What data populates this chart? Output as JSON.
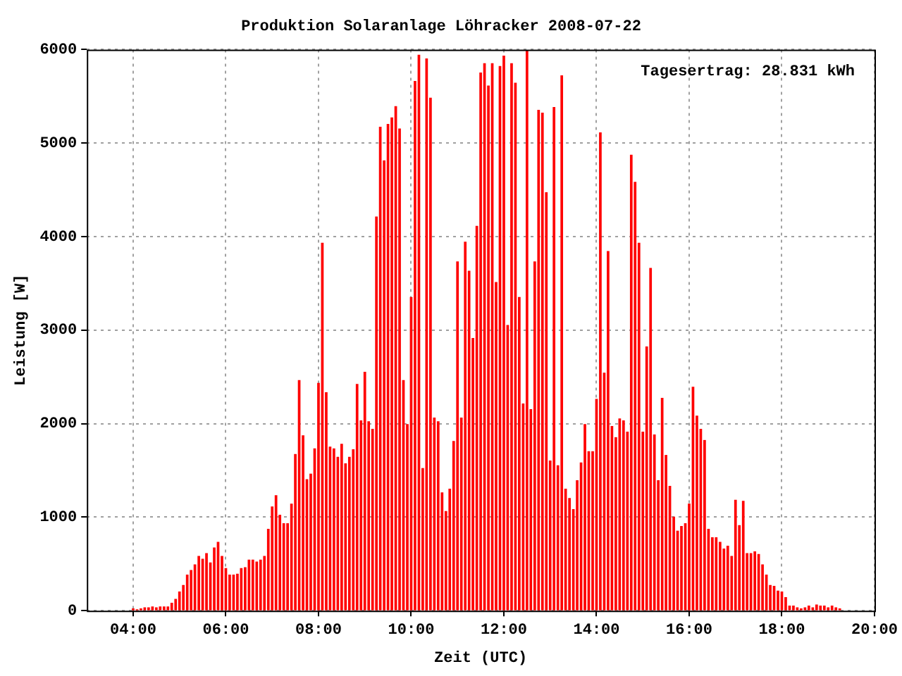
{
  "chart_data": {
    "type": "bar",
    "title": "Produktion Solaranlage Löhracker 2008-07-22",
    "xlabel": "Zeit (UTC)",
    "ylabel": "Leistung [W]",
    "annotations": [
      "Tagesertrag: 28.831 kWh"
    ],
    "x": [
      4,
      4.083,
      4.167,
      4.25,
      4.333,
      4.417,
      4.5,
      4.583,
      4.667,
      4.75,
      4.833,
      4.917,
      5,
      5.083,
      5.167,
      5.25,
      5.333,
      5.417,
      5.5,
      5.583,
      5.667,
      5.75,
      5.833,
      5.917,
      6,
      6.083,
      6.167,
      6.25,
      6.333,
      6.417,
      6.5,
      6.583,
      6.667,
      6.75,
      6.833,
      6.917,
      7,
      7.083,
      7.167,
      7.25,
      7.333,
      7.417,
      7.5,
      7.583,
      7.667,
      7.75,
      7.833,
      7.917,
      8,
      8.083,
      8.167,
      8.25,
      8.333,
      8.417,
      8.5,
      8.583,
      8.667,
      8.75,
      8.833,
      8.917,
      9,
      9.083,
      9.167,
      9.25,
      9.333,
      9.417,
      9.5,
      9.583,
      9.667,
      9.75,
      9.833,
      9.917,
      10,
      10.083,
      10.167,
      10.25,
      10.333,
      10.417,
      10.5,
      10.583,
      10.667,
      10.75,
      10.833,
      10.917,
      11,
      11.083,
      11.167,
      11.25,
      11.333,
      11.417,
      11.5,
      11.583,
      11.667,
      11.75,
      11.833,
      11.917,
      12,
      12.083,
      12.167,
      12.25,
      12.333,
      12.417,
      12.5,
      12.583,
      12.667,
      12.75,
      12.833,
      12.917,
      13,
      13.083,
      13.167,
      13.25,
      13.333,
      13.417,
      13.5,
      13.583,
      13.667,
      13.75,
      13.833,
      13.917,
      14,
      14.083,
      14.167,
      14.25,
      14.333,
      14.417,
      14.5,
      14.583,
      14.667,
      14.75,
      14.833,
      14.917,
      15,
      15.083,
      15.167,
      15.25,
      15.333,
      15.417,
      15.5,
      15.583,
      15.667,
      15.75,
      15.833,
      15.917,
      16,
      16.083,
      16.167,
      16.25,
      16.333,
      16.417,
      16.5,
      16.583,
      16.667,
      16.75,
      16.833,
      16.917,
      17,
      17.083,
      17.167,
      17.25,
      17.333,
      17.417,
      17.5,
      17.583,
      17.667,
      17.75,
      17.833,
      17.917,
      18,
      18.083,
      18.167,
      18.25,
      18.333,
      18.417,
      18.5,
      18.583,
      18.667,
      18.75,
      18.833,
      18.917,
      19,
      19.083,
      19.167,
      19.25
    ],
    "series": [
      {
        "color": "#ff0000",
        "values": [
          20,
          10,
          20,
          30,
          30,
          40,
          30,
          40,
          40,
          40,
          80,
          120,
          200,
          270,
          380,
          430,
          490,
          580,
          550,
          610,
          510,
          670,
          730,
          580,
          450,
          380,
          380,
          390,
          450,
          460,
          540,
          540,
          520,
          540,
          580,
          870,
          1110,
          1230,
          1020,
          930,
          930,
          1140,
          1670,
          2460,
          1870,
          1400,
          1460,
          1730,
          2430,
          3930,
          2330,
          1750,
          1730,
          1640,
          1780,
          1570,
          1640,
          1720,
          2420,
          2030,
          2550,
          2020,
          1940,
          4210,
          5170,
          4810,
          5200,
          5270,
          5390,
          5150,
          2460,
          1990,
          3350,
          5660,
          5940,
          1520,
          5900,
          5480,
          2060,
          2020,
          1260,
          1060,
          1300,
          1810,
          3730,
          2060,
          3940,
          3630,
          2910,
          4110,
          5750,
          5850,
          5610,
          5850,
          3510,
          5820,
          5930,
          3050,
          5850,
          5640,
          3350,
          2210,
          5990,
          2150,
          3730,
          5350,
          5320,
          4470,
          1600,
          5380,
          1550,
          5720,
          1300,
          1200,
          1080,
          1390,
          1580,
          1990,
          1700,
          1700,
          2260,
          5110,
          2540,
          3840,
          1970,
          1850,
          2050,
          2030,
          1910,
          4870,
          4580,
          3930,
          1910,
          2820,
          3660,
          1880,
          1390,
          2270,
          1660,
          1330,
          1000,
          850,
          900,
          930,
          1140,
          2390,
          2080,
          1940,
          1820,
          870,
          780,
          780,
          730,
          660,
          690,
          580,
          1180,
          910,
          1170,
          610,
          610,
          630,
          600,
          490,
          380,
          270,
          260,
          210,
          200,
          140,
          50,
          50,
          30,
          20,
          30,
          50,
          30,
          60,
          50,
          50,
          30,
          50,
          30,
          20
        ]
      }
    ],
    "xlim": [
      3,
      20
    ],
    "xticks": [
      {
        "value": 4,
        "label": "04:00"
      },
      {
        "value": 6,
        "label": "06:00"
      },
      {
        "value": 8,
        "label": "08:00"
      },
      {
        "value": 10,
        "label": "10:00"
      },
      {
        "value": 12,
        "label": "12:00"
      },
      {
        "value": 14,
        "label": "14:00"
      },
      {
        "value": 16,
        "label": "16:00"
      },
      {
        "value": 18,
        "label": "18:00"
      },
      {
        "value": 20,
        "label": "20:00"
      }
    ],
    "ylim": [
      0,
      6000
    ],
    "yticks": [
      0,
      1000,
      2000,
      3000,
      4000,
      5000,
      6000
    ],
    "grid": true
  }
}
